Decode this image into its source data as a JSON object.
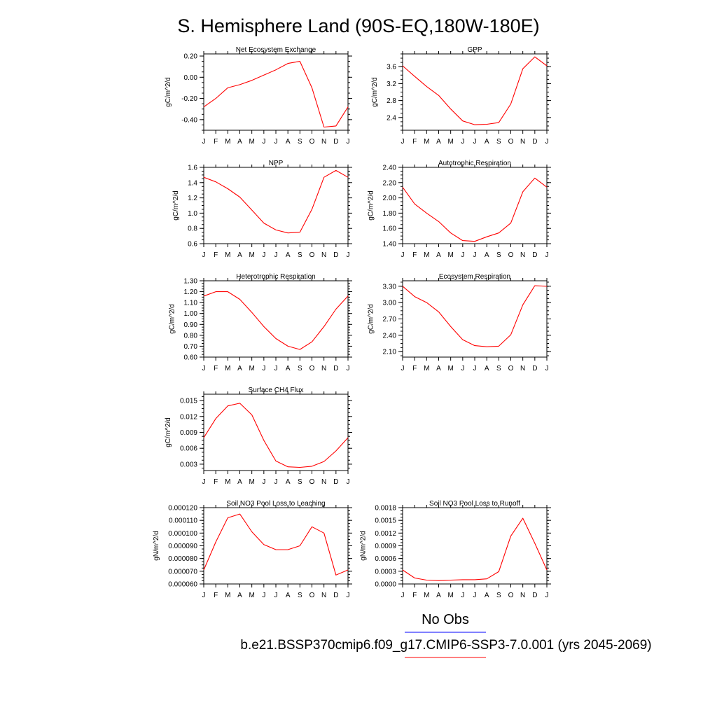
{
  "title": "S. Hemisphere Land (90S-EQ,180W-180E)",
  "colors": {
    "model": "#ff0000",
    "obs": "#0000ff",
    "axis": "#000000"
  },
  "legend": {
    "obs_label": "No Obs",
    "model_label": "b.e21.BSSP370cmip6.f09_g17.CMIP6-SSP3-7.0.001 (yrs 2045-2069)"
  },
  "chart_data": [
    {
      "type": "line",
      "title": "Net Ecosystem Exchange",
      "ylabel": "gC/m^2/d",
      "x": [
        "J",
        "F",
        "M",
        "A",
        "M",
        "J",
        "J",
        "A",
        "S",
        "O",
        "N",
        "D",
        "J"
      ],
      "ylim": [
        -0.5,
        0.22
      ],
      "yticks": [
        -0.4,
        -0.2,
        0.0,
        0.2
      ],
      "ytick_labels": [
        "-0.40",
        "-0.20",
        "0.00",
        "0.20"
      ],
      "series": [
        {
          "values": [
            -0.28,
            -0.2,
            -0.1,
            -0.07,
            -0.03,
            0.02,
            0.07,
            0.13,
            0.15,
            -0.1,
            -0.47,
            -0.46,
            -0.28
          ]
        }
      ]
    },
    {
      "type": "line",
      "title": "GPP",
      "ylabel": "gC/m^2/d",
      "x": [
        "J",
        "F",
        "M",
        "A",
        "M",
        "J",
        "J",
        "A",
        "S",
        "O",
        "N",
        "D",
        "J"
      ],
      "ylim": [
        2.1,
        3.9
      ],
      "yticks": [
        2.4,
        2.8,
        3.2,
        3.6
      ],
      "ytick_labels": [
        "2.4",
        "2.8",
        "3.2",
        "3.6"
      ],
      "series": [
        {
          "values": [
            3.62,
            3.37,
            3.13,
            2.92,
            2.6,
            2.32,
            2.23,
            2.24,
            2.28,
            2.72,
            3.55,
            3.83,
            3.62
          ]
        }
      ]
    },
    {
      "type": "line",
      "title": "NPP",
      "ylabel": "gC/m^2/d",
      "x": [
        "J",
        "F",
        "M",
        "A",
        "M",
        "J",
        "J",
        "A",
        "S",
        "O",
        "N",
        "D",
        "J"
      ],
      "ylim": [
        0.6,
        1.6
      ],
      "yticks": [
        0.6,
        0.8,
        1.0,
        1.2,
        1.4,
        1.6
      ],
      "ytick_labels": [
        "0.6",
        "0.8",
        "1.0",
        "1.2",
        "1.4",
        "1.6"
      ],
      "series": [
        {
          "values": [
            1.47,
            1.41,
            1.32,
            1.21,
            1.04,
            0.87,
            0.78,
            0.74,
            0.75,
            1.05,
            1.47,
            1.56,
            1.47
          ]
        }
      ]
    },
    {
      "type": "line",
      "title": "Autotrophic Respiration",
      "ylabel": "gC/m^2/d",
      "x": [
        "J",
        "F",
        "M",
        "A",
        "M",
        "J",
        "J",
        "A",
        "S",
        "O",
        "N",
        "D",
        "J"
      ],
      "ylim": [
        1.4,
        2.4
      ],
      "yticks": [
        1.4,
        1.6,
        1.8,
        2.0,
        2.2,
        2.4
      ],
      "ytick_labels": [
        "1.40",
        "1.60",
        "1.80",
        "2.00",
        "2.20",
        "2.40"
      ],
      "series": [
        {
          "values": [
            2.14,
            1.92,
            1.8,
            1.69,
            1.54,
            1.44,
            1.43,
            1.49,
            1.54,
            1.67,
            2.08,
            2.26,
            2.14
          ]
        }
      ]
    },
    {
      "type": "line",
      "title": "Heterotrophic Respiration",
      "ylabel": "gC/m^2/d",
      "x": [
        "J",
        "F",
        "M",
        "A",
        "M",
        "J",
        "J",
        "A",
        "S",
        "O",
        "N",
        "D",
        "J"
      ],
      "ylim": [
        0.6,
        1.3
      ],
      "yticks": [
        0.6,
        0.7,
        0.8,
        0.9,
        1.0,
        1.1,
        1.2,
        1.3
      ],
      "ytick_labels": [
        "0.60",
        "0.70",
        "0.80",
        "0.90",
        "1.00",
        "1.10",
        "1.20",
        "1.30"
      ],
      "series": [
        {
          "values": [
            1.16,
            1.2,
            1.2,
            1.13,
            1.01,
            0.88,
            0.77,
            0.7,
            0.67,
            0.74,
            0.88,
            1.04,
            1.16
          ]
        }
      ]
    },
    {
      "type": "line",
      "title": "Ecosystem Respiration",
      "ylabel": "gC/m^2/d",
      "x": [
        "J",
        "F",
        "M",
        "A",
        "M",
        "J",
        "J",
        "A",
        "S",
        "O",
        "N",
        "D",
        "J"
      ],
      "ylim": [
        2.0,
        3.4
      ],
      "yticks": [
        2.1,
        2.4,
        2.7,
        3.0,
        3.3
      ],
      "ytick_labels": [
        "2.10",
        "2.40",
        "2.70",
        "3.00",
        "3.30"
      ],
      "series": [
        {
          "values": [
            3.3,
            3.11,
            3.0,
            2.83,
            2.56,
            2.32,
            2.21,
            2.19,
            2.2,
            2.41,
            2.96,
            3.31,
            3.3
          ]
        }
      ]
    },
    {
      "type": "line",
      "title": "Surface CH4 Flux",
      "ylabel": "gC/m^2/d",
      "x": [
        "J",
        "F",
        "M",
        "A",
        "M",
        "J",
        "J",
        "A",
        "S",
        "O",
        "N",
        "D",
        "J"
      ],
      "ylim": [
        0.0018,
        0.0162
      ],
      "yticks": [
        0.003,
        0.006,
        0.009,
        0.012,
        0.015
      ],
      "ytick_labels": [
        "0.003",
        "0.006",
        "0.009",
        "0.012",
        "0.015"
      ],
      "series": [
        {
          "values": [
            0.008,
            0.0116,
            0.014,
            0.0145,
            0.0123,
            0.0075,
            0.0036,
            0.0025,
            0.0024,
            0.0026,
            0.0035,
            0.0055,
            0.008
          ]
        }
      ]
    },
    {
      "type": "line",
      "title": "Soil NO3 Pool Loss to Leaching",
      "ylabel": "gN/m^2/d",
      "x": [
        "J",
        "F",
        "M",
        "A",
        "M",
        "J",
        "J",
        "A",
        "S",
        "O",
        "N",
        "D",
        "J"
      ],
      "ylim": [
        6e-05,
        0.00012
      ],
      "yticks": [
        6e-05,
        7e-05,
        8e-05,
        9e-05,
        0.0001,
        0.00011,
        0.00012
      ],
      "ytick_labels": [
        "0.000060",
        "0.000070",
        "0.000080",
        "0.000090",
        "0.000100",
        "0.000110",
        "0.000120"
      ],
      "series": [
        {
          "values": [
            7.1e-05,
            9.3e-05,
            0.000112,
            0.000115,
            0.000101,
            9.1e-05,
            8.7e-05,
            8.7e-05,
            9e-05,
            0.000105,
            0.0001,
            6.7e-05,
            7.1e-05
          ]
        }
      ]
    },
    {
      "type": "line",
      "title": "Soil NO3 Pool Loss to Runoff",
      "ylabel": "gN/m^2/d",
      "x": [
        "J",
        "F",
        "M",
        "A",
        "M",
        "J",
        "J",
        "A",
        "S",
        "O",
        "N",
        "D",
        "J"
      ],
      "ylim": [
        0.0,
        0.0018
      ],
      "yticks": [
        0.0,
        0.0003,
        0.0006,
        0.0009,
        0.0012,
        0.0015,
        0.0018
      ],
      "ytick_labels": [
        "0.0000",
        "0.0003",
        "0.0006",
        "0.0009",
        "0.0012",
        "0.0015",
        "0.0018"
      ],
      "series": [
        {
          "values": [
            0.00033,
            0.00014,
            9e-05,
            8e-05,
            9e-05,
            0.0001,
            0.0001,
            0.00012,
            0.00029,
            0.00113,
            0.00155,
            0.00096,
            0.00033
          ]
        }
      ]
    }
  ]
}
